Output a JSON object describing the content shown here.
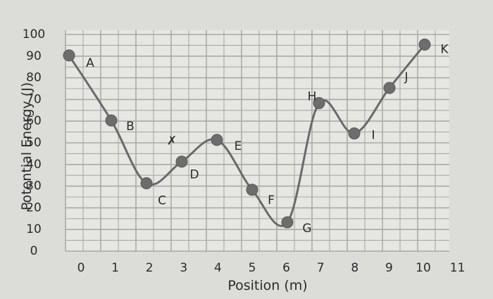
{
  "chart_data": {
    "type": "line",
    "xlabel": "Position (m)",
    "ylabel": "Potential Energy (J)",
    "xlim": [
      0,
      11
    ],
    "ylim": [
      0,
      100
    ],
    "x_ticks": [
      "0",
      "1",
      "2",
      "3",
      "4",
      "5",
      "6",
      "7",
      "8",
      "9",
      "10",
      "11"
    ],
    "y_ticks": [
      "0",
      "10",
      "20",
      "30",
      "40",
      "50",
      "60",
      "70",
      "80",
      "90",
      "100"
    ],
    "grid": true,
    "smooth": true,
    "marker_color": "#6d6d6d",
    "line_color": "#6a6a6a",
    "points": [
      {
        "label": "A",
        "x": 0,
        "y": 90
      },
      {
        "label": "B",
        "x": 1.2,
        "y": 60
      },
      {
        "label": "C",
        "x": 2.2,
        "y": 31
      },
      {
        "label": "D",
        "x": 3.2,
        "y": 41
      },
      {
        "label": "E",
        "x": 4.2,
        "y": 51
      },
      {
        "label": "F",
        "x": 5.2,
        "y": 28
      },
      {
        "label": "G",
        "x": 6.2,
        "y": 13
      },
      {
        "label": "H",
        "x": 7.1,
        "y": 68
      },
      {
        "label": "I",
        "x": 8.1,
        "y": 54
      },
      {
        "label": "J",
        "x": 9.1,
        "y": 75
      },
      {
        "label": "K",
        "x": 10.1,
        "y": 95
      }
    ],
    "annotations": [
      {
        "text": "✗",
        "near": "D",
        "description": "handwritten mark"
      }
    ]
  }
}
